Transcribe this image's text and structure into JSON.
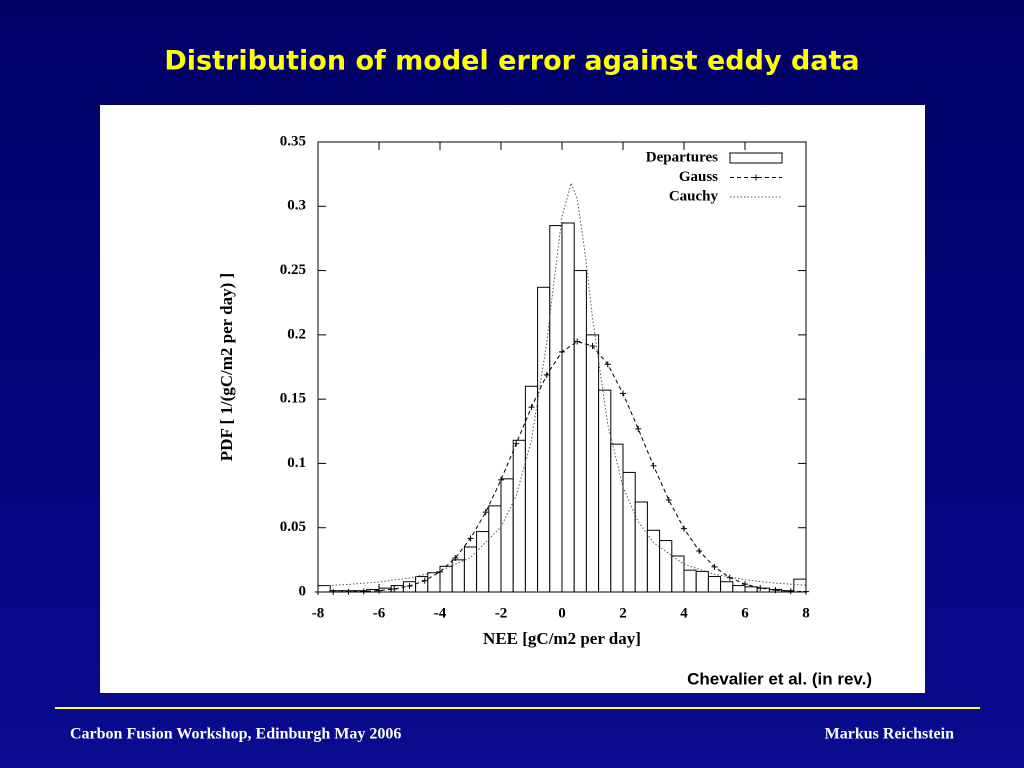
{
  "chart_data": {
    "type": "histogram",
    "title": "Distribution of model error against eddy data",
    "xlabel": "NEE [gC/m2 per day]",
    "ylabel": "PDF [ 1/(gC/m2 per day) ]",
    "xlim": [
      -8,
      8
    ],
    "xticks": [
      -8,
      -6,
      -4,
      -2,
      0,
      2,
      4,
      6,
      8
    ],
    "ylim": [
      0,
      0.35
    ],
    "yticks": [
      0,
      0.05,
      0.1,
      0.15,
      0.2,
      0.25,
      0.3,
      0.35
    ],
    "legend": "upper-right",
    "series": [
      {
        "name": "Departures",
        "type": "histogram",
        "color": "#000000",
        "bins": [
          -8,
          -7.6,
          -7.2,
          -6.8,
          -6.4,
          -6,
          -5.6,
          -5.2,
          -4.8,
          -4.4,
          -4,
          -3.6,
          -3.2,
          -2.8,
          -2.4,
          -2,
          -1.6,
          -1.2,
          -0.8,
          -0.4,
          0,
          0.4,
          0.8,
          1.2,
          1.6,
          2,
          2.4,
          2.8,
          3.2,
          3.6,
          4,
          4.4,
          4.8,
          5.2,
          5.6,
          6,
          6.4,
          6.8,
          7.2,
          7.6,
          8
        ],
        "values": [
          0.005,
          0.001,
          0.001,
          0.001,
          0.002,
          0.003,
          0.005,
          0.008,
          0.012,
          0.015,
          0.02,
          0.025,
          0.035,
          0.047,
          0.067,
          0.088,
          0.118,
          0.16,
          0.237,
          0.285,
          0.287,
          0.25,
          0.2,
          0.157,
          0.115,
          0.093,
          0.07,
          0.048,
          0.04,
          0.028,
          0.017,
          0.016,
          0.012,
          0.008,
          0.005,
          0.004,
          0.003,
          0.002,
          0.001,
          0.01
        ]
      },
      {
        "name": "Gauss",
        "type": "line",
        "dash": "dashed",
        "marker": "plus",
        "color": "#000000",
        "x": [
          -8,
          -7.5,
          -7,
          -6.5,
          -6,
          -5.5,
          -5,
          -4.5,
          -4,
          -3.5,
          -3,
          -2.5,
          -2,
          -1.5,
          -1,
          -0.5,
          0,
          0.5,
          1,
          1.5,
          2,
          2.5,
          3,
          3.5,
          4,
          4.5,
          5,
          5.5,
          6,
          6.5,
          7,
          7.5,
          8
        ],
        "values": [
          0,
          0.0001,
          0.0002,
          0.0005,
          0.0011,
          0.0023,
          0.0047,
          0.0088,
          0.0157,
          0.0264,
          0.0417,
          0.0621,
          0.0872,
          0.1154,
          0.1438,
          0.1689,
          0.1868,
          0.1948,
          0.1913,
          0.1771,
          0.1544,
          0.1269,
          0.0982,
          0.0716,
          0.0493,
          0.0319,
          0.0195,
          0.0112,
          0.0061,
          0.0031,
          0.0015,
          0.0007,
          0.0003
        ]
      },
      {
        "name": "Cauchy",
        "type": "line",
        "dash": "dotted",
        "color": "#555555",
        "x": [
          -8,
          -7,
          -6,
          -5,
          -4,
          -3,
          -2,
          -1.5,
          -1,
          -0.5,
          -0.25,
          0,
          0.3,
          0.5,
          0.75,
          1,
          1.5,
          2,
          2.5,
          3,
          4,
          5,
          6,
          7,
          8
        ],
        "values": [
          0.0046,
          0.0059,
          0.0078,
          0.0109,
          0.0163,
          0.0268,
          0.0506,
          0.075,
          0.1182,
          0.1939,
          0.2441,
          0.2917,
          0.318,
          0.3058,
          0.2644,
          0.2134,
          0.1303,
          0.0817,
          0.0545,
          0.0384,
          0.0216,
          0.0138,
          0.0095,
          0.0069,
          0.0053
        ]
      }
    ]
  },
  "slide": {
    "citation": "Chevalier et al. (in rev.)",
    "footer_left": "Carbon Fusion Workshop, Edinburgh May 2006",
    "footer_right": "Markus Reichstein"
  }
}
